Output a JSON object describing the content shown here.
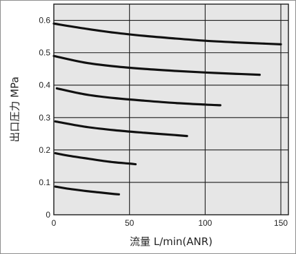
{
  "chart_data": {
    "type": "line",
    "title": "",
    "xlabel": "流量 L/min(ANR)",
    "ylabel": "出口圧力 MPa",
    "xlim": [
      0,
      155
    ],
    "ylim": [
      0,
      0.65
    ],
    "x_ticks": [
      "0",
      "50",
      "100",
      "150"
    ],
    "y_ticks": [
      "0",
      "0.1",
      "0.2",
      "0.3",
      "0.4",
      "0.5",
      "0.6"
    ],
    "grid": true,
    "legend": "none",
    "colors": {
      "plot_background": "#e6e6e6",
      "curve": "#111111",
      "gridline": "#1a1a1a"
    },
    "series": [
      {
        "x": [
          0,
          20,
          40,
          60,
          80,
          100,
          120,
          140,
          150
        ],
        "y": [
          0.59,
          0.575,
          0.562,
          0.552,
          0.544,
          0.537,
          0.532,
          0.528,
          0.526
        ]
      },
      {
        "x": [
          0,
          20,
          40,
          60,
          80,
          100,
          120,
          136
        ],
        "y": [
          0.49,
          0.47,
          0.458,
          0.45,
          0.444,
          0.439,
          0.435,
          0.432
        ]
      },
      {
        "x": [
          2,
          20,
          40,
          60,
          80,
          100,
          110
        ],
        "y": [
          0.39,
          0.372,
          0.36,
          0.352,
          0.345,
          0.34,
          0.338
        ]
      },
      {
        "x": [
          1,
          20,
          40,
          60,
          80,
          88
        ],
        "y": [
          0.288,
          0.272,
          0.261,
          0.253,
          0.246,
          0.243
        ]
      },
      {
        "x": [
          1,
          10,
          20,
          30,
          40,
          50,
          54
        ],
        "y": [
          0.19,
          0.182,
          0.175,
          0.168,
          0.162,
          0.158,
          0.156
        ]
      },
      {
        "x": [
          1,
          10,
          20,
          30,
          40,
          43
        ],
        "y": [
          0.087,
          0.08,
          0.074,
          0.069,
          0.064,
          0.063
        ]
      }
    ]
  }
}
